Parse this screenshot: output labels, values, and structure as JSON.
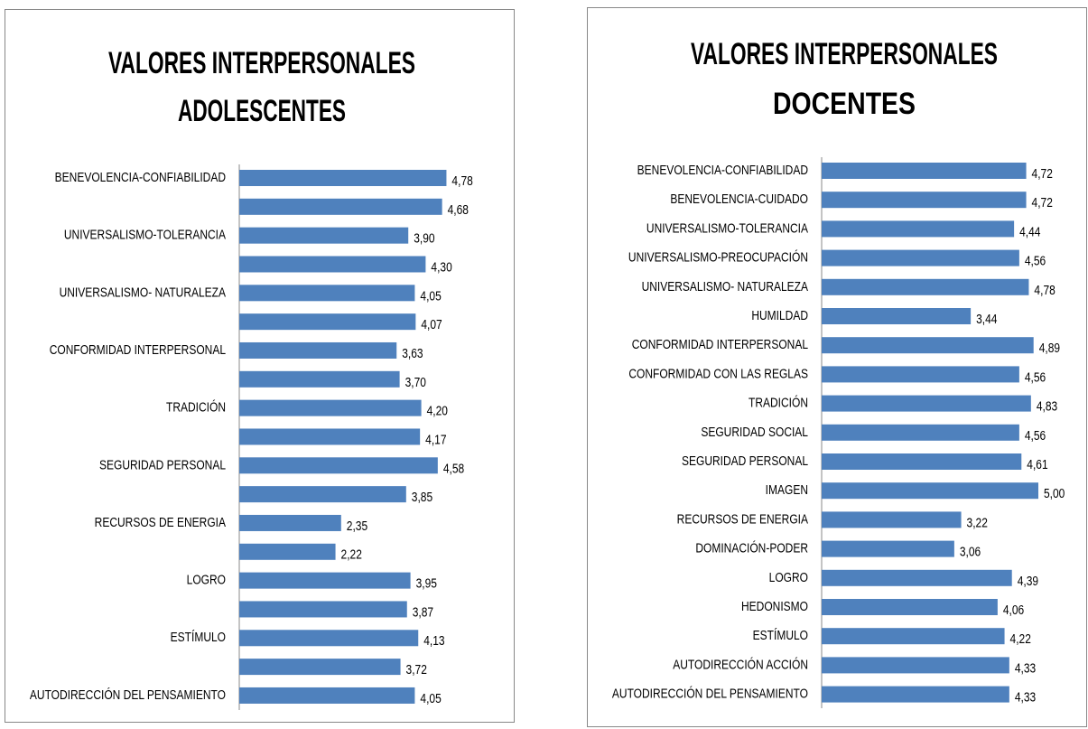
{
  "chart_data": [
    {
      "type": "barh",
      "title": [
        "VALORES INTERPERSONALES",
        "ADOLESCENTES"
      ],
      "color": "#4f81bd",
      "categories": [
        "BENEVOLENCIA-CONFIABILIDAD",
        null,
        "UNIVERSALISMO-TOLERANCIA",
        null,
        "UNIVERSALISMO- NATURALEZA",
        null,
        "CONFORMIDAD INTERPERSONAL",
        null,
        "TRADICIÓN",
        null,
        "SEGURIDAD PERSONAL",
        null,
        "RECURSOS DE ENERGIA",
        null,
        "LOGRO",
        null,
        "ESTÍMULO",
        null,
        "AUTODIRECCIÓN DEL PENSAMIENTO"
      ],
      "values": [
        4.78,
        4.68,
        3.9,
        4.3,
        4.05,
        4.07,
        3.63,
        3.7,
        4.2,
        4.17,
        4.58,
        3.85,
        2.35,
        2.22,
        3.95,
        3.87,
        4.13,
        3.72,
        4.05
      ],
      "value_labels": [
        "4,78",
        "4,68",
        "3,90",
        "4,30",
        "4,05",
        "4,07",
        "3,63",
        "3,70",
        "4,20",
        "4,17",
        "4,58",
        "3,85",
        "2,35",
        "2,22",
        "3,95",
        "3,87",
        "4,13",
        "3,72",
        "4,05"
      ]
    },
    {
      "type": "barh",
      "title": [
        "VALORES INTERPERSONALES",
        "DOCENTES"
      ],
      "color": "#4f81bd",
      "categories": [
        "BENEVOLENCIA-CONFIABILIDAD",
        "BENEVOLENCIA-CUIDADO",
        "UNIVERSALISMO-TOLERANCIA",
        "UNIVERSALISMO-PREOCUPACIÓN",
        "UNIVERSALISMO- NATURALEZA",
        "HUMILDAD",
        "CONFORMIDAD INTERPERSONAL",
        "CONFORMIDAD CON LAS REGLAS",
        "TRADICIÓN",
        "SEGURIDAD SOCIAL",
        "SEGURIDAD PERSONAL",
        "IMAGEN",
        "RECURSOS DE ENERGIA",
        "DOMINACIÓN-PODER",
        "LOGRO",
        "HEDONISMO",
        "ESTÍMULO",
        "AUTODIRECCIÓN ACCIÓN",
        "AUTODIRECCIÓN DEL PENSAMIENTO"
      ],
      "values": [
        4.72,
        4.72,
        4.44,
        4.56,
        4.78,
        3.44,
        4.89,
        4.56,
        4.83,
        4.56,
        4.61,
        5.0,
        3.22,
        3.06,
        4.39,
        4.06,
        4.22,
        4.33,
        4.33
      ],
      "value_labels": [
        "4,72",
        "4,72",
        "4,44",
        "4,56",
        "4,78",
        "3,44",
        "4,89",
        "4,56",
        "4,83",
        "4,56",
        "4,61",
        "5,00",
        "3,22",
        "3,06",
        "4,39",
        "4,06",
        "4,22",
        "4,33",
        "4,33"
      ]
    }
  ]
}
